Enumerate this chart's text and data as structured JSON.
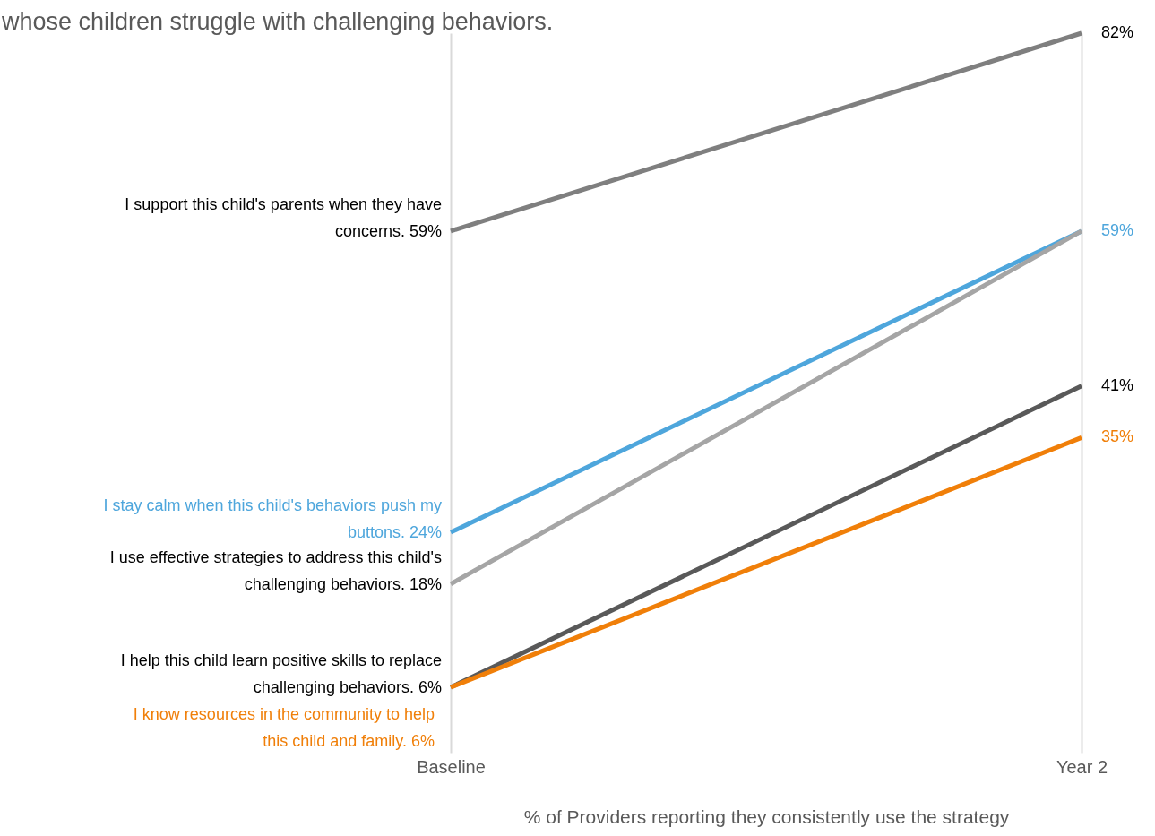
{
  "chart_data": {
    "type": "line",
    "title": "whose children struggle with challenging behaviors.",
    "xlabel": "% of Providers reporting they consistently use the strategy",
    "categories": [
      "Baseline",
      "Year 2"
    ],
    "grid": "x",
    "legend": false,
    "marker": "none",
    "line_style": "solid",
    "series": [
      {
        "name": "I support this child's parents when they have\nconcerns.",
        "color": "#7f7f7f",
        "values": [
          59,
          82
        ],
        "value_labels": [
          "59%",
          "82%"
        ]
      },
      {
        "name": "I stay calm when this child's behaviors push my\nbuttons.",
        "color": "#4ea6dc",
        "values": [
          24,
          59
        ],
        "value_labels": [
          "24%",
          "59%"
        ]
      },
      {
        "name": "I use effective strategies to address this child's\nchallenging behaviors.",
        "color": "#a5a5a5",
        "values": [
          18,
          59
        ],
        "value_labels": [
          "18%",
          null
        ]
      },
      {
        "name": "I help this child learn positive skills to replace\nchallenging behaviors.",
        "color": "#595959",
        "values": [
          6,
          41
        ],
        "value_labels": [
          "6%",
          "41%"
        ]
      },
      {
        "name": "I know resources in the community to help\nthis child and family.",
        "color": "#f07f09",
        "values": [
          6,
          35
        ],
        "value_labels": [
          "6%",
          "35%"
        ]
      }
    ]
  }
}
